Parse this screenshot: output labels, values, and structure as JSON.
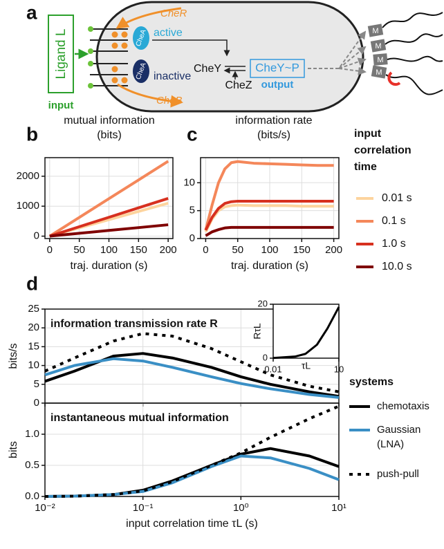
{
  "panel_labels": [
    "a",
    "b",
    "c",
    "d"
  ],
  "diagram": {
    "ligand": "Ligand L",
    "input": "input",
    "cheR": "CheR",
    "active": "active",
    "cheA_active": "CheA",
    "cheA_inactive": "CheA",
    "inactive": "inactive",
    "cheB": "CheB",
    "cheY": "CheY",
    "cheZ": "CheZ",
    "cheYP": "CheY~P",
    "output": "output",
    "motors": [
      "M",
      "M",
      "M",
      "M"
    ]
  },
  "legend_bc_title": "input correlation time",
  "legend_d_title": "systems",
  "chart_data": [
    {
      "type": "line",
      "title": "mutual information (bits)",
      "xlabel": "traj. duration (s)",
      "x": [
        0,
        50,
        100,
        150,
        200
      ],
      "xlim": [
        -8,
        208
      ],
      "ylim": [
        -80,
        2620
      ],
      "xticks": [
        0,
        50,
        100,
        150,
        200
      ],
      "yticks": [
        0,
        1000,
        2000
      ],
      "grid": true,
      "series": [
        {
          "name": "0.01 s",
          "color": "#fdd49e",
          "values": [
            0,
            275,
            550,
            825,
            1100
          ]
        },
        {
          "name": "0.1 s",
          "color": "#f4875a",
          "values": [
            0,
            625,
            1250,
            1875,
            2500
          ]
        },
        {
          "name": "1.0 s",
          "color": "#d7301f",
          "values": [
            0,
            315,
            630,
            945,
            1260
          ]
        },
        {
          "name": "10.0 s",
          "color": "#7f0000",
          "values": [
            0,
            95,
            190,
            285,
            380
          ]
        }
      ]
    },
    {
      "type": "line",
      "title": "information rate (bits/s)",
      "xlabel": "traj. duration (s)",
      "x": [
        0,
        10,
        20,
        30,
        40,
        50,
        75,
        100,
        125,
        150,
        175,
        200
      ],
      "xlim": [
        -8,
        208
      ],
      "ylim": [
        0,
        14.5
      ],
      "xticks": [
        0,
        50,
        100,
        150,
        200
      ],
      "yticks": [
        0,
        5,
        10
      ],
      "grid": true,
      "series": [
        {
          "color": "#fdd49e",
          "values": [
            1.2,
            3.5,
            5,
            5.7,
            5.9,
            6.0,
            5.9,
            5.9,
            5.9,
            5.8,
            5.8,
            5.8
          ]
        },
        {
          "color": "#f4875a",
          "values": [
            1.5,
            6,
            10,
            12.5,
            13.6,
            13.8,
            13.5,
            13.4,
            13.3,
            13.2,
            13.1,
            13.1
          ]
        },
        {
          "color": "#d7301f",
          "values": [
            1.5,
            3.8,
            5.4,
            6.3,
            6.6,
            6.7,
            6.7,
            6.7,
            6.7,
            6.7,
            6.7,
            6.7
          ]
        },
        {
          "color": "#7f0000",
          "values": [
            0.5,
            1.2,
            1.6,
            1.9,
            2.0,
            2.0,
            2.0,
            2.0,
            2.0,
            2.0,
            2.0,
            2.0
          ]
        }
      ]
    },
    {
      "type": "line",
      "annotation": "information transmission rate R",
      "ylabel": "bits/s",
      "xscale": "log",
      "x": [
        0.01,
        0.02,
        0.05,
        0.1,
        0.2,
        0.5,
        1,
        2,
        5,
        10
      ],
      "xlim": [
        0.01,
        10
      ],
      "ylim": [
        0,
        25
      ],
      "xticks": [
        0.01,
        0.1,
        1,
        10
      ],
      "xticklabels": false,
      "yticks": [
        0,
        5,
        10,
        15,
        20,
        25
      ],
      "grid": true,
      "series": [
        {
          "name": "chemotaxis",
          "color": "#000000",
          "values": [
            5.8,
            8.5,
            12.5,
            13.2,
            12,
            9.5,
            7,
            5,
            3,
            1.8
          ]
        },
        {
          "name": "Gaussian (LNA)",
          "color": "#3a8fc5",
          "values": [
            7.5,
            10,
            11.8,
            11.2,
            9.5,
            7,
            5.2,
            3.8,
            2.3,
            1.5
          ]
        },
        {
          "name": "push-pull",
          "color": "#000000",
          "style": "dotted",
          "values": [
            8.5,
            12,
            16.5,
            18.5,
            17.8,
            14.5,
            11,
            7.5,
            4.5,
            3.0
          ]
        }
      ]
    },
    {
      "type": "line",
      "annotation": "instantaneous mutual information",
      "ylabel": "bits",
      "xlabel": "input correlation time τL (s)",
      "xscale": "log",
      "x": [
        0.01,
        0.02,
        0.05,
        0.1,
        0.2,
        0.5,
        1,
        2,
        5,
        10
      ],
      "xlim": [
        0.01,
        10
      ],
      "ylim": [
        0,
        1.5
      ],
      "xticks": [
        {
          "value": 0.01,
          "label": "10⁻²"
        },
        {
          "value": 0.1,
          "label": "10⁻¹"
        },
        {
          "value": 1,
          "label": "10⁰"
        },
        {
          "value": 10,
          "label": "10¹"
        }
      ],
      "yticks": [
        {
          "value": 0,
          "label": "0.0"
        },
        0.5,
        {
          "value": 1,
          "label": "1.0"
        }
      ],
      "grid": true,
      "series": [
        {
          "color": "#000000",
          "values": [
            0,
            0.005,
            0.03,
            0.1,
            0.25,
            0.5,
            0.68,
            0.77,
            0.65,
            0.48
          ]
        },
        {
          "color": "#3a8fc5",
          "values": [
            0,
            0.005,
            0.03,
            0.08,
            0.22,
            0.48,
            0.65,
            0.62,
            0.45,
            0.27
          ]
        },
        {
          "color": "#000000",
          "style": "dotted",
          "values": [
            0,
            0.005,
            0.03,
            0.09,
            0.24,
            0.5,
            0.7,
            0.95,
            1.25,
            1.45
          ]
        }
      ]
    },
    {
      "type": "line",
      "ylabel": "RτL",
      "xlabel": "τL",
      "xscale": "log",
      "x": [
        0.01,
        0.1,
        0.3,
        1,
        3,
        10
      ],
      "xlim": [
        0.01,
        10
      ],
      "ylim": [
        0,
        20
      ],
      "xticks": [
        0.01,
        10
      ],
      "yticks": [
        0,
        20
      ],
      "grid": false,
      "series": [
        {
          "color": "#000000",
          "values": [
            0.06,
            0.6,
            1.6,
            5,
            11,
            19
          ]
        }
      ]
    }
  ]
}
